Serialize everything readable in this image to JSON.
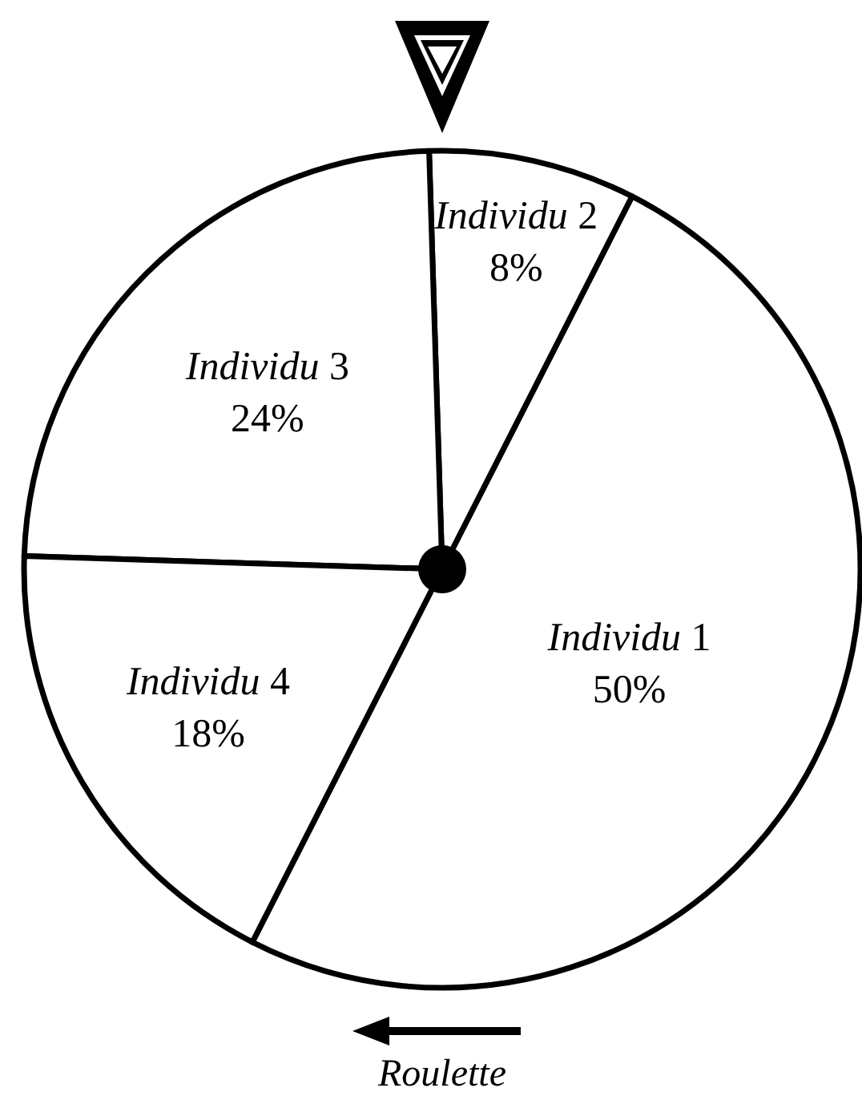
{
  "chart_data": {
    "type": "pie",
    "categories": [
      "Individu 1",
      "Individu 2",
      "Individu 3",
      "Individu 4"
    ],
    "values": [
      50,
      8,
      24,
      18
    ],
    "value_labels": [
      "50%",
      "8%",
      "24%",
      "18%"
    ],
    "colors": [
      "#ffffff",
      "#ffffff",
      "#ffffff",
      "#ffffff"
    ],
    "annotations": [
      "Roulette"
    ],
    "legend": false
  }
}
